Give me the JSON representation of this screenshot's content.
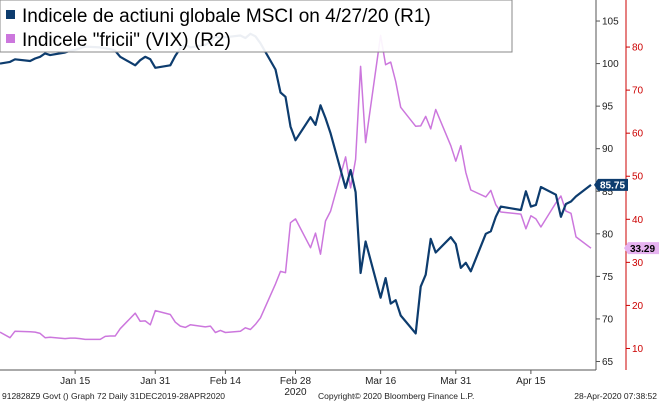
{
  "chart_data": {
    "type": "line",
    "x_ticks": [
      {
        "date": "2020-01-15",
        "label": "Jan 15"
      },
      {
        "date": "2020-01-31",
        "label": "Jan 31"
      },
      {
        "date": "2020-02-14",
        "label": "Feb 14"
      },
      {
        "date": "2020-02-28",
        "label": "Feb 28"
      },
      {
        "date": "2020-03-16",
        "label": "Mar 16"
      },
      {
        "date": "2020-03-31",
        "label": "Mar 31"
      },
      {
        "date": "2020-04-15",
        "label": "Apr 15"
      }
    ],
    "year_label": "2020",
    "x_range": [
      "2019-12-31",
      "2020-04-28"
    ],
    "y_axes": {
      "R1": {
        "range": [
          64,
          107
        ],
        "ticks": [
          65,
          70,
          75,
          80,
          85,
          90,
          95,
          100,
          105
        ],
        "color": "#0d3c6e"
      },
      "R2": {
        "range": [
          5,
          90
        ],
        "ticks": [
          10,
          20,
          30,
          40,
          50,
          60,
          70,
          80
        ],
        "color": "#cc0000"
      }
    },
    "series": [
      {
        "name": "Indicele de actiuni globale MSCI on 4/27/20 (R1)",
        "axis": "R1",
        "color": "#0d3c6e",
        "last_value": "85.75",
        "points": [
          [
            "2019-12-31",
            100.0
          ],
          [
            "2020-01-02",
            100.2
          ],
          [
            "2020-01-03",
            100.5
          ],
          [
            "2020-01-06",
            100.3
          ],
          [
            "2020-01-07",
            100.6
          ],
          [
            "2020-01-08",
            100.8
          ],
          [
            "2020-01-09",
            101.2
          ],
          [
            "2020-01-10",
            101.0
          ],
          [
            "2020-01-13",
            101.3
          ],
          [
            "2020-01-14",
            101.5
          ],
          [
            "2020-01-15",
            101.6
          ],
          [
            "2020-01-16",
            101.8
          ],
          [
            "2020-01-17",
            102.0
          ],
          [
            "2020-01-20",
            101.9
          ],
          [
            "2020-01-21",
            101.8
          ],
          [
            "2020-01-22",
            101.7
          ],
          [
            "2020-01-23",
            101.5
          ],
          [
            "2020-01-24",
            100.8
          ],
          [
            "2020-01-27",
            99.8
          ],
          [
            "2020-01-28",
            100.4
          ],
          [
            "2020-01-29",
            100.8
          ],
          [
            "2020-01-30",
            100.5
          ],
          [
            "2020-01-31",
            99.5
          ],
          [
            "2020-02-03",
            99.8
          ],
          [
            "2020-02-04",
            100.9
          ],
          [
            "2020-02-05",
            101.8
          ],
          [
            "2020-02-06",
            102.2
          ],
          [
            "2020-02-07",
            101.9
          ],
          [
            "2020-02-10",
            102.2
          ],
          [
            "2020-02-11",
            102.6
          ],
          [
            "2020-02-12",
            103.2
          ],
          [
            "2020-02-13",
            103.0
          ],
          [
            "2020-02-14",
            103.1
          ],
          [
            "2020-02-17",
            103.3
          ],
          [
            "2020-02-18",
            103.0
          ],
          [
            "2020-02-19",
            103.5
          ],
          [
            "2020-02-20",
            103.2
          ],
          [
            "2020-02-21",
            102.4
          ],
          [
            "2020-02-24",
            99.3
          ],
          [
            "2020-02-25",
            96.6
          ],
          [
            "2020-02-26",
            96.1
          ],
          [
            "2020-02-27",
            92.6
          ],
          [
            "2020-02-28",
            91.0
          ],
          [
            "2020-03-02",
            93.7
          ],
          [
            "2020-03-03",
            92.8
          ],
          [
            "2020-03-04",
            95.1
          ],
          [
            "2020-03-05",
            93.6
          ],
          [
            "2020-03-06",
            91.8
          ],
          [
            "2020-03-09",
            85.4
          ],
          [
            "2020-03-10",
            87.5
          ],
          [
            "2020-03-11",
            84.9
          ],
          [
            "2020-03-12",
            75.4
          ],
          [
            "2020-03-13",
            79.1
          ],
          [
            "2020-03-16",
            72.5
          ],
          [
            "2020-03-17",
            74.8
          ],
          [
            "2020-03-18",
            71.8
          ],
          [
            "2020-03-19",
            72.2
          ],
          [
            "2020-03-20",
            70.4
          ],
          [
            "2020-03-23",
            68.3
          ],
          [
            "2020-03-24",
            73.8
          ],
          [
            "2020-03-25",
            75.2
          ],
          [
            "2020-03-26",
            79.4
          ],
          [
            "2020-03-27",
            77.8
          ],
          [
            "2020-03-30",
            79.6
          ],
          [
            "2020-03-31",
            78.8
          ],
          [
            "2020-04-01",
            76.0
          ],
          [
            "2020-04-02",
            76.6
          ],
          [
            "2020-04-03",
            75.6
          ],
          [
            "2020-04-06",
            80.0
          ],
          [
            "2020-04-07",
            80.3
          ],
          [
            "2020-04-08",
            82.0
          ],
          [
            "2020-04-09",
            83.2
          ],
          [
            "2020-04-13",
            82.8
          ],
          [
            "2020-04-14",
            85.0
          ],
          [
            "2020-04-15",
            83.2
          ],
          [
            "2020-04-16",
            83.4
          ],
          [
            "2020-04-17",
            85.5
          ],
          [
            "2020-04-20",
            84.6
          ],
          [
            "2020-04-21",
            82.0
          ],
          [
            "2020-04-22",
            83.5
          ],
          [
            "2020-04-23",
            83.8
          ],
          [
            "2020-04-24",
            84.4
          ],
          [
            "2020-04-27",
            85.75
          ]
        ]
      },
      {
        "name": "Indicele \"fricii\" (VIX) (R2)",
        "axis": "R2",
        "color": "#cc77dd",
        "last_value": "33.29",
        "points": [
          [
            "2019-12-31",
            13.8
          ],
          [
            "2020-01-02",
            12.5
          ],
          [
            "2020-01-03",
            14.0
          ],
          [
            "2020-01-06",
            13.9
          ],
          [
            "2020-01-07",
            13.8
          ],
          [
            "2020-01-08",
            13.5
          ],
          [
            "2020-01-09",
            12.5
          ],
          [
            "2020-01-10",
            12.6
          ],
          [
            "2020-01-13",
            12.3
          ],
          [
            "2020-01-14",
            12.4
          ],
          [
            "2020-01-15",
            12.4
          ],
          [
            "2020-01-16",
            12.3
          ],
          [
            "2020-01-17",
            12.1
          ],
          [
            "2020-01-20",
            12.1
          ],
          [
            "2020-01-21",
            12.8
          ],
          [
            "2020-01-22",
            12.9
          ],
          [
            "2020-01-23",
            12.9
          ],
          [
            "2020-01-24",
            14.6
          ],
          [
            "2020-01-27",
            18.2
          ],
          [
            "2020-01-28",
            16.3
          ],
          [
            "2020-01-29",
            16.4
          ],
          [
            "2020-01-30",
            15.5
          ],
          [
            "2020-01-31",
            18.8
          ],
          [
            "2020-02-03",
            17.9
          ],
          [
            "2020-02-04",
            16.1
          ],
          [
            "2020-02-05",
            15.2
          ],
          [
            "2020-02-06",
            14.9
          ],
          [
            "2020-02-07",
            15.5
          ],
          [
            "2020-02-10",
            15.0
          ],
          [
            "2020-02-11",
            15.2
          ],
          [
            "2020-02-12",
            13.7
          ],
          [
            "2020-02-13",
            14.2
          ],
          [
            "2020-02-14",
            13.7
          ],
          [
            "2020-02-17",
            14.0
          ],
          [
            "2020-02-18",
            14.8
          ],
          [
            "2020-02-19",
            14.4
          ],
          [
            "2020-02-20",
            15.6
          ],
          [
            "2020-02-21",
            17.1
          ],
          [
            "2020-02-24",
            25.0
          ],
          [
            "2020-02-25",
            27.9
          ],
          [
            "2020-02-26",
            27.6
          ],
          [
            "2020-02-27",
            39.2
          ],
          [
            "2020-02-28",
            40.1
          ],
          [
            "2020-03-02",
            33.4
          ],
          [
            "2020-03-03",
            36.8
          ],
          [
            "2020-03-04",
            31.9
          ],
          [
            "2020-03-05",
            39.6
          ],
          [
            "2020-03-06",
            41.9
          ],
          [
            "2020-03-09",
            54.5
          ],
          [
            "2020-03-10",
            47.3
          ],
          [
            "2020-03-11",
            53.9
          ],
          [
            "2020-03-12",
            75.5
          ],
          [
            "2020-03-13",
            57.8
          ],
          [
            "2020-03-16",
            82.7
          ],
          [
            "2020-03-17",
            75.9
          ],
          [
            "2020-03-18",
            76.5
          ],
          [
            "2020-03-19",
            72.0
          ],
          [
            "2020-03-20",
            66.0
          ],
          [
            "2020-03-23",
            61.6
          ],
          [
            "2020-03-24",
            61.7
          ],
          [
            "2020-03-25",
            63.9
          ],
          [
            "2020-03-26",
            61.0
          ],
          [
            "2020-03-27",
            65.5
          ],
          [
            "2020-03-30",
            57.1
          ],
          [
            "2020-03-31",
            53.5
          ],
          [
            "2020-04-01",
            57.1
          ],
          [
            "2020-04-02",
            50.9
          ],
          [
            "2020-04-03",
            46.8
          ],
          [
            "2020-04-06",
            45.2
          ],
          [
            "2020-04-07",
            46.7
          ],
          [
            "2020-04-08",
            43.4
          ],
          [
            "2020-04-09",
            41.7
          ],
          [
            "2020-04-13",
            41.2
          ],
          [
            "2020-04-14",
            37.8
          ],
          [
            "2020-04-15",
            40.8
          ],
          [
            "2020-04-16",
            40.1
          ],
          [
            "2020-04-17",
            38.2
          ],
          [
            "2020-04-20",
            43.8
          ],
          [
            "2020-04-21",
            45.4
          ],
          [
            "2020-04-22",
            41.9
          ],
          [
            "2020-04-23",
            41.4
          ],
          [
            "2020-04-24",
            35.9
          ],
          [
            "2020-04-27",
            33.29
          ]
        ]
      }
    ],
    "legend_placement": "top-left",
    "grid": false
  },
  "footer": {
    "left": "912828Z9 Govt () Graph 72  Daily 31DEC2019-28APR2020",
    "center": "Copyright© 2020 Bloomberg Finance L.P.",
    "right": "28-Apr-2020 07:38:52"
  }
}
